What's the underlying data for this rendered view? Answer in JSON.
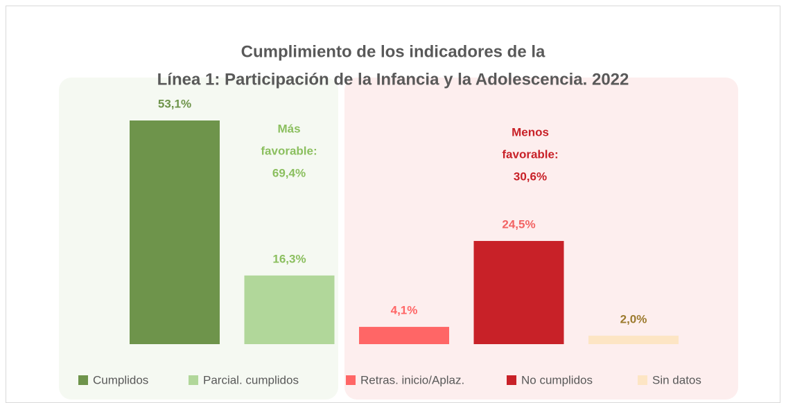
{
  "chart_data": {
    "type": "bar",
    "title": [
      "Cumplimiento de los indicadores de la",
      "Línea 1: Participación de la Infancia y la Adolescencia. 2022"
    ],
    "categories": [
      "Cumplidos",
      "Parcial. cumplidos",
      "Retras. inicio/Aplaz.",
      "No cumplidos",
      "Sin datos"
    ],
    "values": [
      53.1,
      16.3,
      4.1,
      24.5,
      2.0
    ],
    "value_labels": [
      "53,1%",
      "16,3%",
      "4,1%",
      "24,5%",
      "2,0%"
    ],
    "colors": [
      "#6e944b",
      "#b1d79a",
      "#ff6666",
      "#c82128",
      "#fde5c4"
    ],
    "value_label_colors": [
      "#6e944b",
      "#8bbf5f",
      "#ff6666",
      "#f26363",
      "#9c7a2e"
    ],
    "annotations": [
      {
        "text": [
          "Más",
          "favorable:",
          "69,4%"
        ],
        "color": "#8bbf5f"
      },
      {
        "text": [
          "Menos",
          "favorable:",
          "30,6%"
        ],
        "color": "#c82128"
      }
    ]
  }
}
